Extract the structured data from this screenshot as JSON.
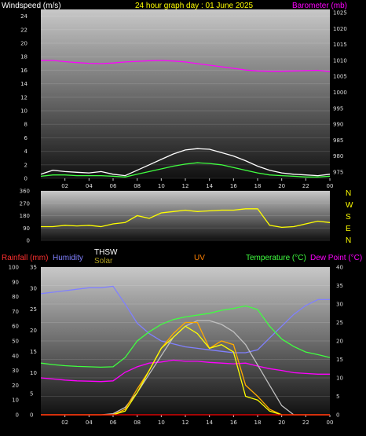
{
  "chart_data": [
    {
      "type": "line",
      "title": "24 hour graph day : 01 June 2025",
      "left_axis_label": "Windspeed (m/s)",
      "right_axis_label": "Barometer (mb)",
      "x_tick_labels": [
        "02",
        "04",
        "06",
        "08",
        "10",
        "12",
        "14",
        "16",
        "18",
        "20",
        "22",
        "00"
      ],
      "left_ticks": [
        0,
        2,
        4,
        6,
        8,
        10,
        12,
        14,
        16,
        18,
        20,
        22,
        24
      ],
      "right_ticks": [
        975,
        980,
        985,
        990,
        995,
        1000,
        1005,
        1010,
        1015,
        1020,
        1025
      ],
      "left_ylim": [
        0,
        25
      ],
      "right_ylim": [
        973,
        1026
      ],
      "x_hours": [
        0,
        1,
        2,
        3,
        4,
        5,
        6,
        7,
        8,
        9,
        10,
        11,
        12,
        13,
        14,
        15,
        16,
        17,
        18,
        19,
        20,
        21,
        22,
        23,
        24
      ],
      "series": [
        {
          "axis": "right",
          "color": "#ff00ff",
          "values": [
            1010,
            1010,
            1009.6,
            1009.3,
            1009.1,
            1009,
            1009.2,
            1009.5,
            1009.7,
            1009.9,
            1010,
            1009.8,
            1009.5,
            1009,
            1008.5,
            1008,
            1007.5,
            1007,
            1006.7,
            1006.6,
            1006.6,
            1006.7,
            1006.8,
            1006.9,
            1006.5
          ]
        },
        {
          "axis": "left",
          "color": "#ffffff",
          "values": [
            0.6,
            1.2,
            1.0,
            0.9,
            0.8,
            1.0,
            0.6,
            0.4,
            1.2,
            2.0,
            2.8,
            3.6,
            4.2,
            4.4,
            4.3,
            3.8,
            3.3,
            2.6,
            1.8,
            1.2,
            0.8,
            0.6,
            0.5,
            0.4,
            0.6
          ]
        },
        {
          "axis": "left",
          "color": "#40ff40",
          "values": [
            0.3,
            0.5,
            0.5,
            0.4,
            0.4,
            0.4,
            0.3,
            0.2,
            0.6,
            1.0,
            1.4,
            1.8,
            2.1,
            2.3,
            2.2,
            2.0,
            1.6,
            1.2,
            0.8,
            0.5,
            0.4,
            0.3,
            0.2,
            0.2,
            0.3
          ]
        }
      ]
    },
    {
      "type": "line",
      "title": "",
      "left_ticks": [
        0,
        90,
        180,
        270,
        360
      ],
      "left_ylim": [
        0,
        360
      ],
      "compass_labels": [
        "N",
        "W",
        "S",
        "E",
        "N"
      ],
      "x_hours": [
        0,
        1,
        2,
        3,
        4,
        5,
        6,
        7,
        8,
        9,
        10,
        11,
        12,
        13,
        14,
        15,
        16,
        17,
        18,
        19,
        20,
        21,
        22,
        23,
        24
      ],
      "series": [
        {
          "color": "#ffff00",
          "values": [
            100,
            100,
            110,
            105,
            110,
            100,
            120,
            130,
            180,
            160,
            200,
            210,
            220,
            210,
            215,
            220,
            220,
            230,
            230,
            110,
            95,
            100,
            120,
            140,
            130
          ]
        }
      ]
    },
    {
      "type": "line",
      "title": "",
      "labels": {
        "rainfall": "Rainfall (mm)",
        "humidity": "Humidity",
        "thsw": "THSW",
        "solar": "Solar",
        "uv": "UV",
        "temperature": "Temperature (°C)",
        "dewpoint": "Dew Point (°C)"
      },
      "humidity_ticks": [
        0,
        10,
        20,
        30,
        40,
        50,
        60,
        70,
        80,
        90,
        100
      ],
      "rain_ticks": [
        0,
        5,
        10,
        15,
        20,
        25,
        30,
        35
      ],
      "temp_ticks": [
        0,
        5,
        10,
        15,
        20,
        25,
        30,
        35,
        40
      ],
      "x_tick_labels": [
        "02",
        "04",
        "06",
        "08",
        "10",
        "12",
        "14",
        "16",
        "18",
        "20",
        "22",
        "00"
      ],
      "humidity_ylim": [
        0,
        100
      ],
      "temp_ylim": [
        0,
        40
      ],
      "x_hours": [
        0,
        1,
        2,
        3,
        4,
        5,
        6,
        7,
        8,
        9,
        10,
        11,
        12,
        13,
        14,
        15,
        16,
        17,
        18,
        19,
        20,
        21,
        22,
        23,
        24
      ],
      "series": [
        {
          "name": "Humidity",
          "axis": "humidity",
          "color": "#8080ff",
          "values": [
            82,
            83,
            84,
            85,
            86,
            86,
            87,
            75,
            62,
            55,
            50,
            48,
            46,
            45,
            44,
            43,
            42,
            42,
            44,
            52,
            60,
            68,
            74,
            78,
            78
          ]
        },
        {
          "name": "Temperature (°C)",
          "axis": "temp",
          "color": "#40ff40",
          "values": [
            14,
            13.6,
            13.3,
            13.1,
            13,
            12.9,
            13,
            15.5,
            20,
            22.5,
            24.5,
            25.8,
            26.5,
            27,
            27.5,
            28.3,
            28.8,
            29.5,
            28.5,
            24,
            20.5,
            18.5,
            17,
            16.3,
            15.5
          ]
        },
        {
          "name": "Dew Point (°C)",
          "axis": "temp",
          "color": "#ff00ff",
          "values": [
            10,
            9.7,
            9.4,
            9.2,
            9.1,
            9,
            9.2,
            11.5,
            13,
            14,
            14.3,
            14.8,
            14.5,
            14.5,
            14.2,
            14,
            13.8,
            14,
            13.2,
            12.5,
            12,
            11.4,
            11.2,
            11,
            11
          ]
        },
        {
          "name": "Solar",
          "axis": "temp",
          "color": "#c0c0c0",
          "values": [
            0,
            0,
            0,
            0,
            0,
            0,
            0.3,
            2,
            6,
            11,
            16,
            21,
            24,
            25.5,
            25.5,
            24.5,
            22.5,
            19,
            13.5,
            8,
            2.5,
            0,
            0,
            0,
            0
          ]
        },
        {
          "name": "THSW",
          "axis": "temp",
          "color": "#ffaa00",
          "values": [
            0,
            0,
            0,
            0,
            0,
            0,
            0,
            1.5,
            7,
            12,
            18,
            22,
            25,
            25,
            18,
            20,
            19,
            8,
            5,
            1.5,
            0,
            0,
            0,
            0,
            0
          ]
        },
        {
          "name": "UV",
          "axis": "temp",
          "color": "#ffff00",
          "values": [
            0,
            0,
            0,
            0,
            0,
            0,
            0,
            1,
            6,
            12,
            18,
            21,
            24,
            22,
            18,
            19,
            17,
            5,
            4,
            1,
            0,
            0,
            0,
            0,
            0
          ]
        },
        {
          "name": "Rainfall (mm)",
          "axis": "rain",
          "color": "#ff0000",
          "values": [
            0,
            0,
            0,
            0,
            0,
            0,
            0,
            0,
            0,
            0,
            0,
            0,
            0,
            0,
            0,
            0,
            0,
            0,
            0,
            0,
            0,
            0,
            0,
            0,
            0
          ]
        }
      ]
    }
  ]
}
